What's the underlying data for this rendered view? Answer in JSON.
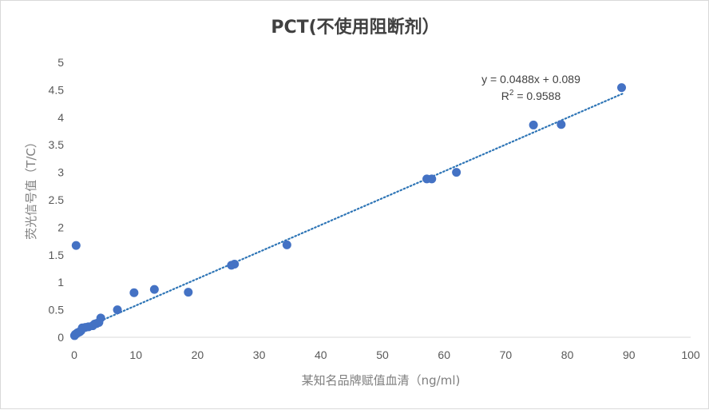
{
  "chart_data": {
    "type": "scatter",
    "title": "PCT(不使用阻断剂）",
    "xlabel": "某知名品牌赋值血清（ng/ml)",
    "ylabel": "荧光信号值（T/C）",
    "xlim": [
      0,
      100
    ],
    "ylim": [
      0,
      5
    ],
    "x_ticks": [
      "0",
      "10",
      "20",
      "30",
      "40",
      "50",
      "60",
      "70",
      "80",
      "90",
      "100"
    ],
    "y_ticks": [
      "0",
      "0.5",
      "1",
      "1.5",
      "2",
      "2.5",
      "3",
      "3.5",
      "4",
      "4.5",
      "5"
    ],
    "grid": false,
    "legend": "none",
    "marker_color": "#4472c4",
    "trendline": {
      "type": "linear",
      "style": "dotted",
      "color": "#2e75b6",
      "slope": 0.0488,
      "intercept": 0.089,
      "x_range": [
        0,
        89
      ],
      "equation_text": "y = 0.0488x + 0.089",
      "r2_prefix": "R",
      "r2_sup": "2",
      "r2_suffix": " = 0.9588"
    },
    "points": [
      {
        "x": 0.05,
        "y": 0.03
      },
      {
        "x": 0.15,
        "y": 0.05
      },
      {
        "x": 0.3,
        "y": 0.06
      },
      {
        "x": 0.5,
        "y": 0.08
      },
      {
        "x": 0.7,
        "y": 0.09
      },
      {
        "x": 0.9,
        "y": 0.1
      },
      {
        "x": 1.1,
        "y": 0.12
      },
      {
        "x": 1.3,
        "y": 0.17
      },
      {
        "x": 1.8,
        "y": 0.18
      },
      {
        "x": 2.3,
        "y": 0.19
      },
      {
        "x": 3.0,
        "y": 0.21
      },
      {
        "x": 3.3,
        "y": 0.24
      },
      {
        "x": 3.6,
        "y": 0.25
      },
      {
        "x": 4.0,
        "y": 0.27
      },
      {
        "x": 4.3,
        "y": 0.35
      },
      {
        "x": 0.3,
        "y": 1.67
      },
      {
        "x": 7.0,
        "y": 0.5
      },
      {
        "x": 9.7,
        "y": 0.81
      },
      {
        "x": 13.0,
        "y": 0.87
      },
      {
        "x": 18.5,
        "y": 0.82
      },
      {
        "x": 25.5,
        "y": 1.31
      },
      {
        "x": 26.0,
        "y": 1.33
      },
      {
        "x": 34.5,
        "y": 1.68
      },
      {
        "x": 57.2,
        "y": 2.88
      },
      {
        "x": 58.0,
        "y": 2.88
      },
      {
        "x": 62.0,
        "y": 3.0
      },
      {
        "x": 74.5,
        "y": 3.86
      },
      {
        "x": 79.0,
        "y": 3.87
      },
      {
        "x": 88.8,
        "y": 4.54
      }
    ]
  }
}
